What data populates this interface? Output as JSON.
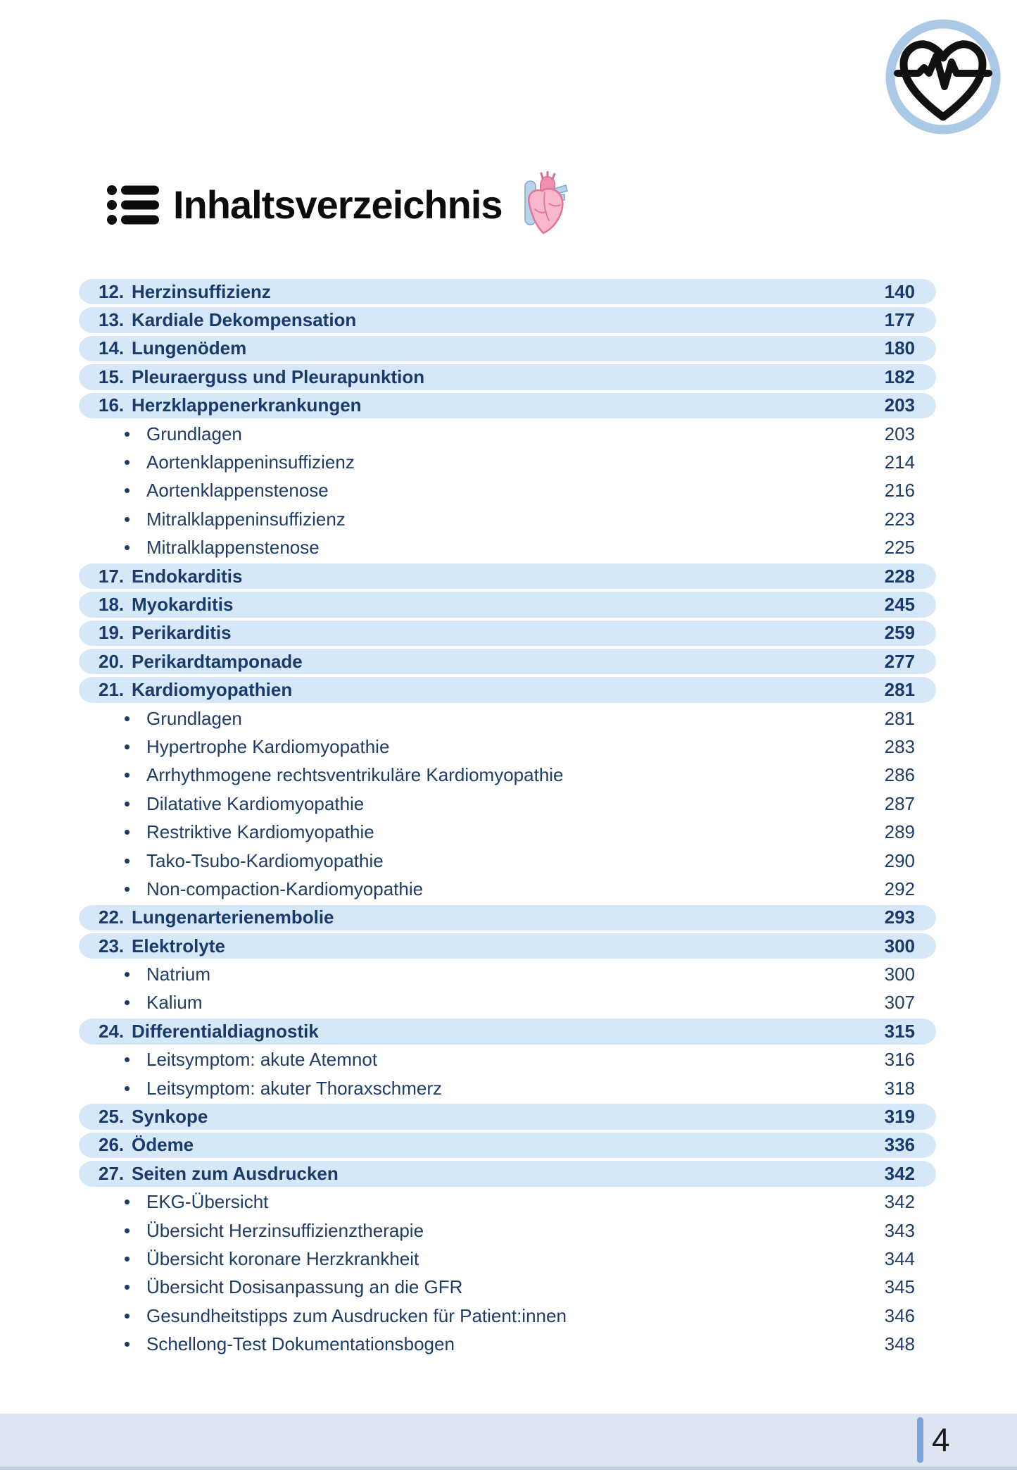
{
  "page": {
    "title": "Inhaltsverzeichnis"
  },
  "footer": {
    "page_number": "4"
  },
  "icons": {
    "logo": "heart-ekg-badge",
    "title_bullet": "list-icon",
    "title_decoration": "anatomical-heart-icon"
  },
  "colors": {
    "chapter_row_bg": "#d6e8f7",
    "chapter_text": "#1a3a6b",
    "subitem_text": "#1f3c66",
    "footer_band": "#dde4f2",
    "footer_bar": "#7da1d9",
    "logo_ring": "#a9c9e6",
    "heart_pink": "#f7b8cc",
    "vessel_blue": "#b8d4ea"
  },
  "toc": {
    "bullet_glyph": "•",
    "items": [
      {
        "type": "chapter",
        "num": "12.",
        "label": "Herzinsuffizienz",
        "page": "140"
      },
      {
        "type": "chapter",
        "num": "13.",
        "label": "Kardiale Dekompensation",
        "page": "177"
      },
      {
        "type": "chapter",
        "num": "14.",
        "label": "Lungenödem",
        "page": "180"
      },
      {
        "type": "chapter",
        "num": "15.",
        "label": "Pleuraerguss und Pleurapunktion",
        "page": "182"
      },
      {
        "type": "chapter",
        "num": "16.",
        "label": "Herzklappenerkrankungen",
        "page": "203"
      },
      {
        "type": "sub",
        "label": "Grundlagen",
        "page": "203"
      },
      {
        "type": "sub",
        "label": "Aortenklappeninsuffizienz",
        "page": "214"
      },
      {
        "type": "sub",
        "label": "Aortenklappenstenose",
        "page": "216"
      },
      {
        "type": "sub",
        "label": "Mitralklappeninsuffizienz",
        "page": "223"
      },
      {
        "type": "sub",
        "label": "Mitralklappenstenose",
        "page": "225"
      },
      {
        "type": "chapter",
        "num": "17.",
        "label": "Endokarditis",
        "page": "228"
      },
      {
        "type": "chapter",
        "num": "18.",
        "label": "Myokarditis",
        "page": "245"
      },
      {
        "type": "chapter",
        "num": "19.",
        "label": "Perikarditis",
        "page": "259"
      },
      {
        "type": "chapter",
        "num": "20.",
        "label": "Perikardtamponade",
        "page": "277"
      },
      {
        "type": "chapter",
        "num": "21.",
        "label": "Kardiomyopathien",
        "page": "281"
      },
      {
        "type": "sub",
        "label": "Grundlagen",
        "page": "281"
      },
      {
        "type": "sub",
        "label": "Hypertrophe Kardiomyopathie",
        "page": "283"
      },
      {
        "type": "sub",
        "label": "Arrhythmogene rechtsventrikuläre Kardiomyopathie",
        "page": "286"
      },
      {
        "type": "sub",
        "label": "Dilatative Kardiomyopathie",
        "page": "287"
      },
      {
        "type": "sub",
        "label": "Restriktive Kardiomyopathie",
        "page": "289"
      },
      {
        "type": "sub",
        "label": "Tako-Tsubo-Kardiomyopathie",
        "page": "290"
      },
      {
        "type": "sub",
        "label": "Non-compaction-Kardiomyopathie",
        "page": "292"
      },
      {
        "type": "chapter",
        "num": "22.",
        "label": "Lungenarterienembolie",
        "page": "293"
      },
      {
        "type": "chapter",
        "num": "23.",
        "label": "Elektrolyte",
        "page": "300"
      },
      {
        "type": "sub",
        "label": "Natrium",
        "page": "300"
      },
      {
        "type": "sub",
        "label": "Kalium",
        "page": "307"
      },
      {
        "type": "chapter",
        "num": "24.",
        "label": "Differentialdiagnostik",
        "page": "315"
      },
      {
        "type": "sub",
        "label": "Leitsymptom: akute Atemnot",
        "page": "316"
      },
      {
        "type": "sub",
        "label": "Leitsymptom: akuter Thoraxschmerz",
        "page": "318"
      },
      {
        "type": "chapter",
        "num": "25.",
        "label": "Synkope",
        "page": "319"
      },
      {
        "type": "chapter",
        "num": "26.",
        "label": "Ödeme",
        "page": "336"
      },
      {
        "type": "chapter",
        "num": "27.",
        "label": "Seiten zum Ausdrucken",
        "page": "342"
      },
      {
        "type": "sub",
        "label": "EKG-Übersicht",
        "page": "342"
      },
      {
        "type": "sub",
        "label": "Übersicht Herzinsuffizienztherapie",
        "page": "343"
      },
      {
        "type": "sub",
        "label": "Übersicht koronare Herzkrankheit",
        "page": "344"
      },
      {
        "type": "sub",
        "label": "Übersicht Dosisanpassung an die GFR",
        "page": "345"
      },
      {
        "type": "sub",
        "label": "Gesundheitstipps zum Ausdrucken für Patient:innen",
        "page": "346"
      },
      {
        "type": "sub",
        "label": "Schellong-Test Dokumentationsbogen",
        "page": "348"
      }
    ]
  }
}
